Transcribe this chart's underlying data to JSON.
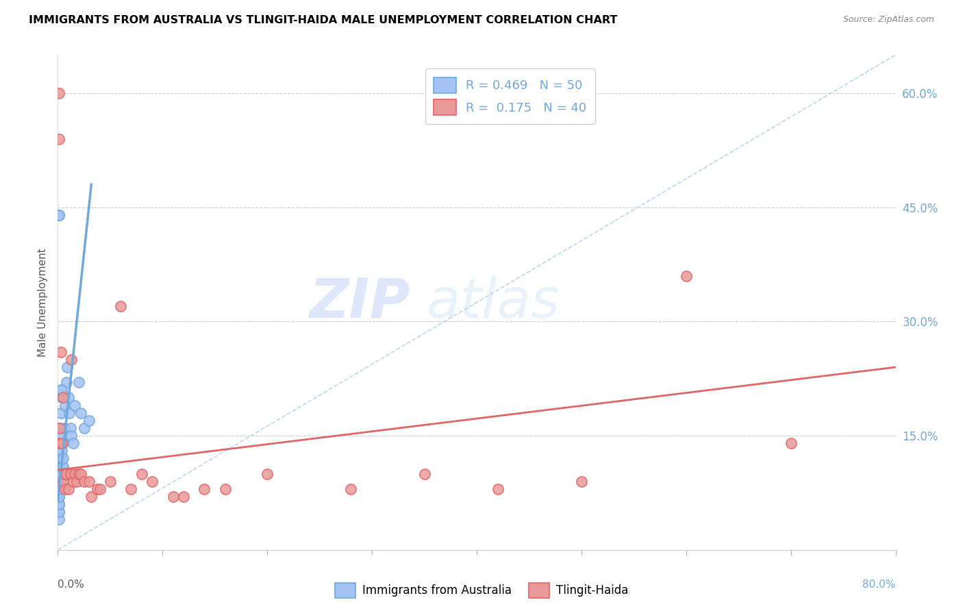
{
  "title": "IMMIGRANTS FROM AUSTRALIA VS TLINGIT-HAIDA MALE UNEMPLOYMENT CORRELATION CHART",
  "source": "Source: ZipAtlas.com",
  "ylabel": "Male Unemployment",
  "right_yticks": [
    "60.0%",
    "45.0%",
    "30.0%",
    "15.0%"
  ],
  "right_ytick_vals": [
    0.6,
    0.45,
    0.3,
    0.15
  ],
  "legend1_label": "R = 0.469   N = 50",
  "legend2_label": "R =  0.175   N = 40",
  "color_blue": "#6fa8dc",
  "color_pink": "#e06666",
  "color_blue_fill": "#a4c2f4",
  "color_pink_fill": "#ea9999",
  "watermark_zip": "ZIP",
  "watermark_atlas": "atlas",
  "blue_scatter_x": [
    0.001,
    0.001,
    0.001,
    0.001,
    0.001,
    0.001,
    0.001,
    0.001,
    0.001,
    0.001,
    0.001,
    0.001,
    0.001,
    0.001,
    0.002,
    0.002,
    0.002,
    0.002,
    0.002,
    0.002,
    0.003,
    0.003,
    0.003,
    0.003,
    0.003,
    0.004,
    0.004,
    0.004,
    0.004,
    0.005,
    0.005,
    0.005,
    0.006,
    0.007,
    0.008,
    0.009,
    0.01,
    0.011,
    0.012,
    0.013,
    0.015,
    0.016,
    0.02,
    0.022,
    0.025,
    0.03,
    0.001,
    0.001,
    0.003,
    0.004
  ],
  "blue_scatter_y": [
    0.04,
    0.05,
    0.05,
    0.06,
    0.06,
    0.07,
    0.07,
    0.08,
    0.09,
    0.09,
    0.1,
    0.11,
    0.12,
    0.13,
    0.08,
    0.09,
    0.1,
    0.12,
    0.14,
    0.16,
    0.09,
    0.1,
    0.12,
    0.15,
    0.18,
    0.1,
    0.11,
    0.13,
    0.2,
    0.11,
    0.12,
    0.14,
    0.16,
    0.19,
    0.22,
    0.24,
    0.2,
    0.18,
    0.16,
    0.15,
    0.14,
    0.19,
    0.22,
    0.18,
    0.16,
    0.17,
    0.44,
    0.44,
    0.21,
    0.21
  ],
  "pink_scatter_x": [
    0.001,
    0.001,
    0.002,
    0.002,
    0.003,
    0.004,
    0.005,
    0.005,
    0.006,
    0.007,
    0.008,
    0.01,
    0.012,
    0.013,
    0.015,
    0.016,
    0.018,
    0.02,
    0.022,
    0.025,
    0.03,
    0.032,
    0.038,
    0.04,
    0.05,
    0.06,
    0.07,
    0.08,
    0.09,
    0.11,
    0.12,
    0.14,
    0.16,
    0.2,
    0.28,
    0.35,
    0.42,
    0.5,
    0.6,
    0.7
  ],
  "pink_scatter_y": [
    0.6,
    0.54,
    0.14,
    0.16,
    0.26,
    0.14,
    0.09,
    0.2,
    0.1,
    0.08,
    0.1,
    0.08,
    0.1,
    0.25,
    0.09,
    0.1,
    0.09,
    0.1,
    0.1,
    0.09,
    0.09,
    0.07,
    0.08,
    0.08,
    0.09,
    0.32,
    0.08,
    0.1,
    0.09,
    0.07,
    0.07,
    0.08,
    0.08,
    0.1,
    0.08,
    0.1,
    0.08,
    0.09,
    0.36,
    0.14
  ],
  "blue_line_x": [
    0.0,
    0.032
  ],
  "blue_line_y": [
    0.065,
    0.48
  ],
  "pink_line_x": [
    0.0,
    0.8
  ],
  "pink_line_y": [
    0.105,
    0.24
  ],
  "dash_line_x": [
    0.0,
    0.8
  ],
  "dash_line_y": [
    0.0,
    0.65
  ],
  "xmin": 0.0,
  "xmax": 0.8,
  "ymin": 0.0,
  "ymax": 0.65,
  "xtick_minor_vals": [
    0.1,
    0.2,
    0.3,
    0.4,
    0.5,
    0.6,
    0.7
  ]
}
